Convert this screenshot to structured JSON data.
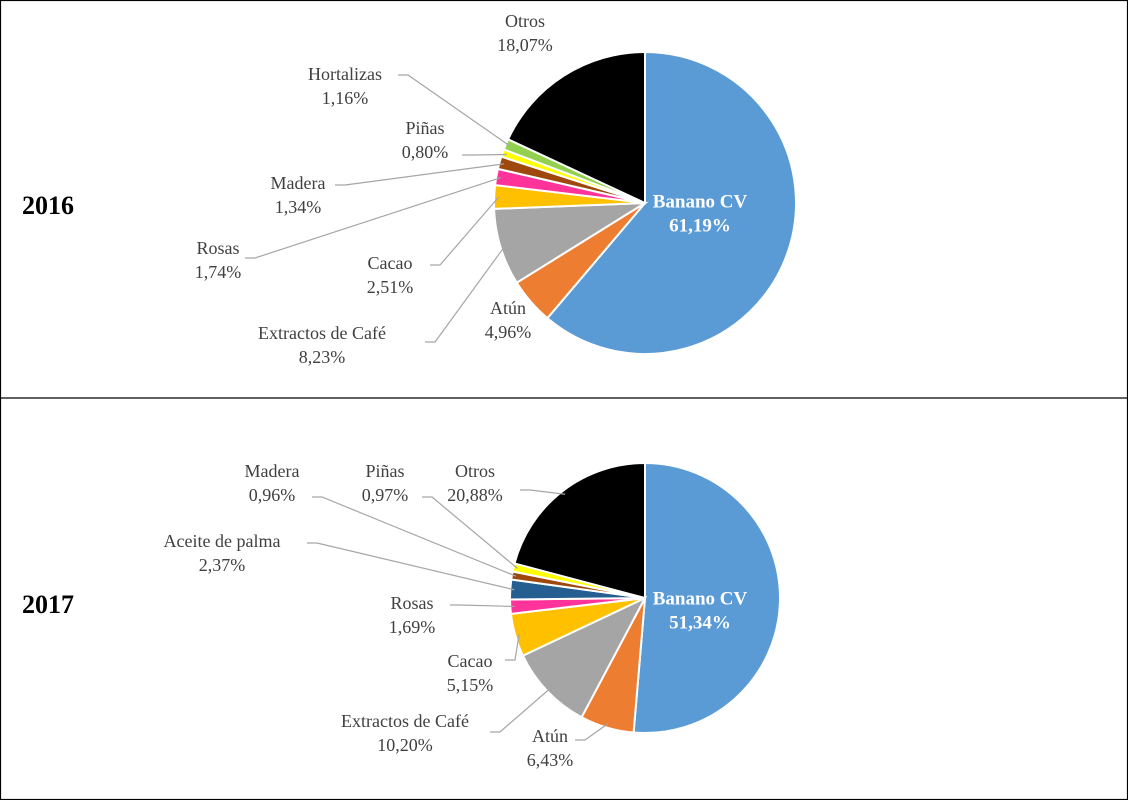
{
  "chart_data": [
    {
      "type": "pie",
      "title": "2016",
      "categories": [
        "Banano CV",
        "Atún",
        "Extractos de Café",
        "Cacao",
        "Rosas",
        "Madera",
        "Piñas",
        "Hortalizas",
        "Otros"
      ],
      "values": [
        61.19,
        4.96,
        8.23,
        2.51,
        1.74,
        1.34,
        0.8,
        1.16,
        18.07
      ],
      "value_labels": [
        "61,19%",
        "4,96%",
        "8,23%",
        "2,51%",
        "1,74%",
        "1,34%",
        "0,80%",
        "1,16%",
        "18,07%"
      ],
      "colors": [
        "#5b9bd5",
        "#ed7d31",
        "#a5a5a5",
        "#ffc000",
        "#ff3399",
        "#9e480e",
        "#ffff00",
        "#92d050",
        "#000000"
      ]
    },
    {
      "type": "pie",
      "title": "2017",
      "categories": [
        "Banano CV",
        "Atún",
        "Extractos de Café",
        "Cacao",
        "Rosas",
        "Aceite de palma",
        "Madera",
        "Piñas",
        "Otros"
      ],
      "values": [
        51.34,
        6.43,
        10.2,
        5.15,
        1.69,
        2.37,
        0.96,
        0.97,
        20.88
      ],
      "value_labels": [
        "51,34%",
        "6,43%",
        "10,20%",
        "5,15%",
        "1,69%",
        "2,37%",
        "0,96%",
        "0,97%",
        "20,88%"
      ],
      "colors": [
        "#5b9bd5",
        "#ed7d31",
        "#a5a5a5",
        "#ffc000",
        "#ff3399",
        "#255e91",
        "#9e480e",
        "#ffff00",
        "#000000"
      ]
    }
  ]
}
